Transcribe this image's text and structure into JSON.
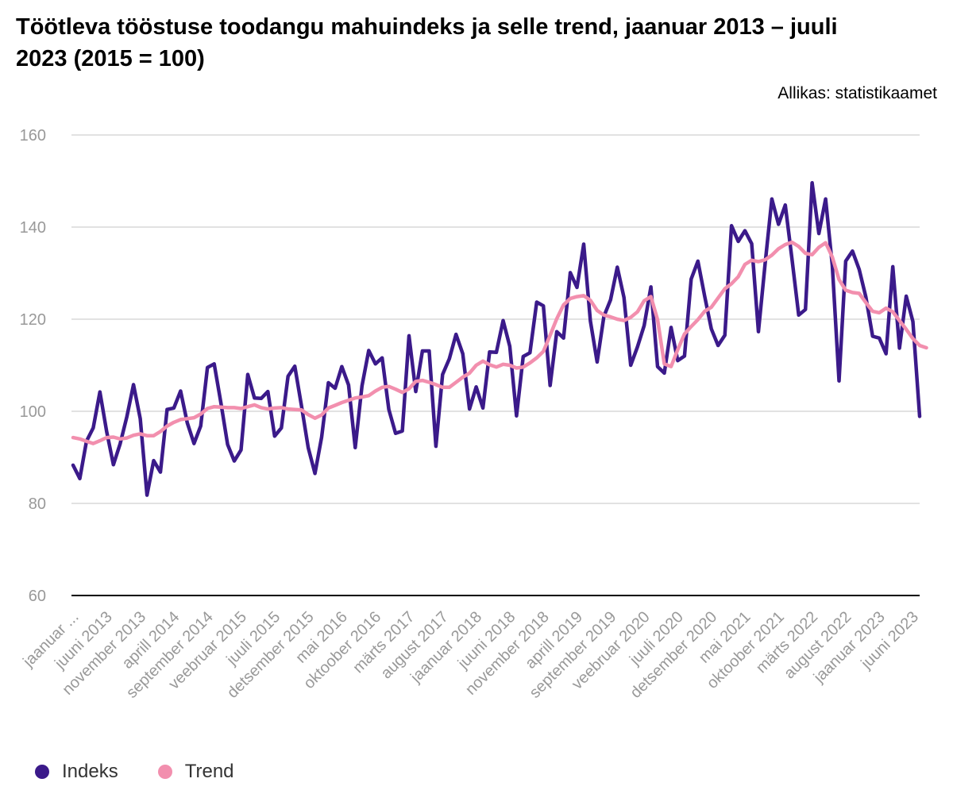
{
  "header": {
    "title": "Töötleva tööstuse toodangu mahuindeks ja selle trend, jaanuar 2013 – juuli 2023 (2015 = 100)",
    "source": "Allikas: statistikaamet"
  },
  "colors": {
    "indeks": "#3b1a8a",
    "trend": "#f28fae",
    "grid": "#d9d9d9",
    "axis": "#000000",
    "tick_text": "#999999"
  },
  "chart_data": {
    "type": "line",
    "title": "Töötleva tööstuse toodangu mahuindeks ja selle trend, jaanuar 2013 – juuli 2023 (2015 = 100)",
    "xlabel": "",
    "ylabel": "",
    "ylim": [
      60,
      160
    ],
    "yticks": [
      60,
      80,
      100,
      120,
      140,
      160
    ],
    "grid": true,
    "legend_position": "bottom-left",
    "x_tick_labels": [
      "jaanuar ...",
      "juuni 2013",
      "november 2013",
      "aprill 2014",
      "september 2014",
      "veebruar 2015",
      "juuli 2015",
      "detsember 2015",
      "mai 2016",
      "oktoober 2016",
      "märts 2017",
      "august 2017",
      "jaanuar 2018",
      "juuni 2018",
      "november 2018",
      "aprill 2019",
      "september 2019",
      "veebruar 2020",
      "juuli 2020",
      "detsember 2020",
      "mai 2021",
      "oktoober 2021",
      "märts 2022",
      "august 2022",
      "jaanuar 2023",
      "juuni 2023"
    ],
    "x_tick_every": 5,
    "series": [
      {
        "name": "Indeks",
        "values": [
          88.3,
          85.4,
          93.5,
          96.4,
          104.2,
          95.6,
          88.4,
          92.9,
          98.8,
          105.8,
          98.4,
          81.8,
          89.3,
          86.8,
          100.4,
          100.7,
          104.4,
          97.5,
          93.0,
          96.8,
          109.5,
          110.3,
          101.9,
          92.8,
          89.2,
          91.6,
          108.0,
          102.9,
          102.8,
          104.3,
          94.6,
          96.4,
          107.6,
          109.8,
          101.1,
          92.1,
          86.5,
          94.4,
          106.2,
          105.0,
          109.7,
          105.7,
          92.1,
          105.5,
          113.2,
          110.3,
          111.6,
          100.4,
          95.2,
          95.7,
          116.4,
          104.3,
          113.1,
          113.1,
          92.4,
          108.0,
          111.4,
          116.7,
          112.5,
          100.5,
          105.3,
          100.7,
          112.9,
          112.8,
          119.7,
          114.1,
          99.0,
          111.9,
          112.7,
          123.7,
          122.9,
          105.6,
          117.3,
          115.9,
          130.1,
          126.9,
          136.3,
          119.6,
          110.7,
          120.6,
          124.2,
          131.3,
          124.7,
          110.0,
          114.0,
          118.6,
          127.0,
          109.7,
          108.3,
          118.2,
          111.0,
          112.0,
          128.7,
          132.6,
          125.0,
          117.9,
          114.3,
          116.5,
          140.3,
          136.9,
          139.2,
          136.4,
          117.3,
          132.0,
          146.1,
          140.6,
          144.8,
          133.0,
          120.9,
          122.1,
          149.6,
          138.6,
          146.1,
          131.7,
          106.6,
          132.6,
          134.8,
          130.8,
          124.8,
          116.3,
          115.9,
          112.5,
          131.4,
          113.7,
          125.0,
          119.5,
          98.9
        ],
        "color": "#3b1a8a"
      },
      {
        "name": "Trend",
        "values": [
          94.3,
          94.0,
          93.5,
          93.0,
          93.6,
          94.3,
          94.4,
          94.0,
          94.2,
          94.8,
          95.1,
          94.7,
          94.7,
          95.6,
          96.8,
          97.6,
          98.2,
          98.4,
          98.6,
          99.4,
          100.6,
          101.0,
          100.9,
          100.8,
          100.8,
          100.6,
          101.0,
          101.4,
          100.8,
          100.5,
          100.7,
          100.8,
          100.5,
          100.4,
          100.3,
          99.3,
          98.5,
          99.2,
          100.7,
          101.3,
          101.9,
          102.4,
          102.9,
          103.1,
          103.4,
          104.4,
          105.2,
          105.4,
          104.8,
          104.1,
          104.9,
          106.5,
          106.7,
          106.3,
          105.8,
          105.2,
          105.2,
          106.3,
          107.4,
          108.3,
          110.0,
          110.9,
          110.1,
          109.6,
          110.2,
          110.0,
          109.4,
          109.6,
          110.5,
          111.6,
          113.0,
          116.5,
          120.1,
          123.1,
          124.5,
          124.9,
          125.1,
          124.1,
          121.9,
          120.9,
          120.5,
          120.0,
          119.7,
          120.4,
          121.6,
          124.0,
          124.9,
          119.9,
          110.3,
          109.7,
          113.4,
          116.8,
          118.4,
          119.9,
          121.7,
          122.6,
          124.6,
          126.6,
          127.7,
          129.2,
          131.9,
          132.8,
          132.5,
          132.9,
          133.9,
          135.3,
          136.2,
          136.7,
          135.8,
          134.3,
          134.0,
          135.6,
          136.6,
          133.5,
          128.6,
          126.3,
          125.8,
          125.6,
          123.6,
          121.7,
          121.4,
          122.4,
          121.6,
          119.7,
          117.8,
          115.8,
          114.3,
          113.8
        ],
        "color": "#f28fae"
      }
    ]
  },
  "legend": {
    "items": [
      {
        "label": "Indeks",
        "color": "#3b1a8a"
      },
      {
        "label": "Trend",
        "color": "#f28fae"
      }
    ]
  }
}
